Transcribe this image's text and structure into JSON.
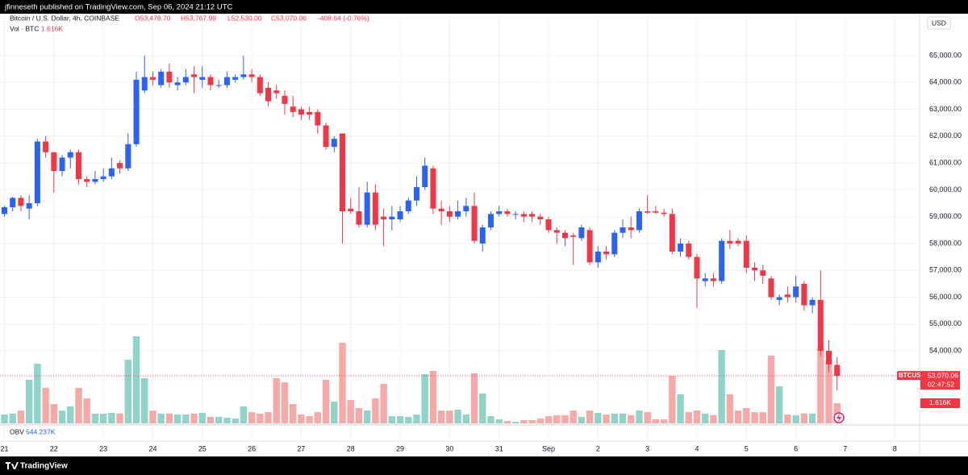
{
  "chart_data": {
    "type": "candlestick",
    "published": "jfinneseth published on TradingView.com, Sep 06, 2024 21:12 UTC",
    "symbol": "Bitcoin / U.S. Dollar, 4h, COINBASE",
    "header_open": "O53,478.70",
    "header_high": "H53,767.99",
    "header_low": "L52,530.00",
    "header_close": "C53,070.06",
    "header_change": "-408.64 (-0.76%)",
    "volume_title": "Vol · BTC",
    "volume_header": "1.616K",
    "currency": "USD",
    "ticker_tag": "BTCUSD",
    "last_price": {
      "value": 53070.06,
      "label": "53,070.06"
    },
    "countdown": "02:47:52",
    "volume_tag": "1.616K",
    "obv_title": "OBV",
    "obv_value": "544.237K",
    "brand": "TradingView",
    "up_color": "#2962ff",
    "down_color": "#f23645",
    "volume_up_color": "#8fd3c9",
    "volume_down_color": "#f7a9a7",
    "grid": true,
    "ylim": [
      51240,
      66560
    ],
    "yticks": [
      {
        "value": 54000,
        "label": "54,000.00"
      },
      {
        "value": 55000,
        "label": "55,000.00"
      },
      {
        "value": 56000,
        "label": "56,000.00"
      },
      {
        "value": 57000,
        "label": "57,000.00"
      },
      {
        "value": 58000,
        "label": "58,000.00"
      },
      {
        "value": 59000,
        "label": "59,000.00"
      },
      {
        "value": 60000,
        "label": "60,000.00"
      },
      {
        "value": 61000,
        "label": "61,000.00"
      },
      {
        "value": 62000,
        "label": "62,000.00"
      },
      {
        "value": 63000,
        "label": "63,000.00"
      },
      {
        "value": 64000,
        "label": "64,000.00"
      },
      {
        "value": 65000,
        "label": "65,000.00"
      }
    ],
    "categories": [
      "21",
      null,
      null,
      null,
      null,
      null,
      "22",
      null,
      null,
      null,
      null,
      null,
      "23",
      null,
      null,
      null,
      null,
      null,
      "24",
      null,
      null,
      null,
      null,
      null,
      "25",
      null,
      null,
      null,
      null,
      null,
      "26",
      null,
      null,
      null,
      null,
      null,
      "27",
      null,
      null,
      null,
      null,
      null,
      "28",
      null,
      null,
      null,
      null,
      null,
      "29",
      null,
      null,
      null,
      null,
      null,
      "30",
      null,
      null,
      null,
      null,
      null,
      "31",
      null,
      null,
      null,
      null,
      null,
      "Sep",
      null,
      null,
      null,
      null,
      null,
      "2",
      null,
      null,
      null,
      null,
      null,
      "3",
      null,
      null,
      null,
      null,
      null,
      "4",
      null,
      null,
      null,
      null,
      null,
      "5",
      null,
      null,
      null,
      null,
      null,
      "6",
      null,
      null,
      null,
      null,
      null
    ],
    "extra_x_labels": [
      "7",
      "8"
    ],
    "open": [
      59100,
      59350,
      59700,
      59300,
      59500,
      61800,
      61400,
      60700,
      61200,
      61400,
      60400,
      60300,
      60400,
      60500,
      61000,
      60800,
      61700,
      63700,
      64200,
      63900,
      64400,
      63900,
      64000,
      64300,
      64100,
      64200,
      63900,
      63900,
      64100,
      64200,
      64300,
      64200,
      63800,
      63700,
      63500,
      63100,
      63000,
      62900,
      62900,
      62400,
      61600,
      62100,
      59300,
      59200,
      58700,
      59900,
      59000,
      58900,
      58900,
      59200,
      59600,
      60100,
      60800,
      59300,
      59200,
      59000,
      59200,
      59400,
      58000,
      58600,
      59100,
      59200,
      59100,
      59100,
      59100,
      59000,
      58900,
      58500,
      58400,
      58300,
      58200,
      58500,
      57300,
      57700,
      57600,
      58400,
      58600,
      58500,
      59200,
      59200,
      59150,
      59100,
      57700,
      58000,
      57500,
      56600,
      56700,
      56600,
      58100,
      58100,
      58100,
      57100,
      57000,
      56700,
      55900,
      56100,
      56000,
      56500,
      55700,
      55900,
      54000,
      53478.7
    ],
    "high": [
      59400,
      59750,
      59800,
      59800,
      61900,
      62000,
      61400,
      61300,
      61500,
      61500,
      60500,
      60700,
      60800,
      61200,
      61100,
      62100,
      64400,
      65000,
      64400,
      64500,
      64700,
      64200,
      64500,
      64600,
      64600,
      64300,
      64100,
      64400,
      64300,
      65000,
      64500,
      64300,
      64000,
      63900,
      63700,
      63500,
      63100,
      63100,
      63000,
      62500,
      62000,
      62100,
      59700,
      60100,
      60300,
      60200,
      59300,
      59400,
      59400,
      59700,
      60500,
      61200,
      60900,
      59600,
      59400,
      59600,
      59700,
      59900,
      58700,
      59200,
      59400,
      59300,
      59200,
      59200,
      59200,
      59100,
      59000,
      58600,
      58500,
      58400,
      58700,
      58600,
      57900,
      57900,
      58500,
      58900,
      59000,
      59300,
      59800,
      59400,
      59300,
      59300,
      58200,
      58100,
      57600,
      56900,
      56900,
      58200,
      58500,
      58200,
      58300,
      57300,
      57200,
      56800,
      56100,
      56400,
      56800,
      56600,
      56000,
      57000,
      54400,
      53767.99
    ],
    "low": [
      59000,
      59200,
      59200,
      58900,
      59400,
      61200,
      59900,
      60500,
      60800,
      60200,
      60100,
      60200,
      60300,
      60400,
      60600,
      60700,
      61600,
      63600,
      63900,
      63800,
      63800,
      63700,
      63900,
      63600,
      63800,
      63700,
      63800,
      63800,
      64000,
      64100,
      64000,
      63500,
      63100,
      63400,
      62800,
      62700,
      62600,
      62600,
      62100,
      61500,
      61400,
      58000,
      59100,
      58600,
      58600,
      58500,
      57900,
      58500,
      58800,
      59100,
      59400,
      60000,
      59100,
      58700,
      58800,
      58900,
      59000,
      58000,
      57700,
      58500,
      59000,
      59000,
      58900,
      58800,
      58800,
      58700,
      58400,
      58000,
      57900,
      57200,
      58100,
      57200,
      57100,
      57400,
      57500,
      58200,
      58200,
      58400,
      59100,
      59100,
      59000,
      57600,
      57500,
      57400,
      55600,
      56400,
      56400,
      56500,
      57800,
      57900,
      56900,
      56600,
      56500,
      55900,
      55700,
      55800,
      55800,
      55500,
      55400,
      53800,
      53200,
      52530
    ],
    "close": [
      59350,
      59700,
      59400,
      59500,
      61800,
      61400,
      60700,
      61200,
      61400,
      60400,
      60300,
      60400,
      60500,
      60800,
      60800,
      61700,
      64100,
      64200,
      64100,
      64400,
      64000,
      64000,
      64200,
      64200,
      64200,
      63900,
      63900,
      64200,
      64200,
      64300,
      64200,
      63600,
      63300,
      63600,
      63200,
      62900,
      62800,
      62800,
      62400,
      61600,
      61900,
      59200,
      59200,
      58700,
      59900,
      58700,
      58900,
      59000,
      59200,
      59600,
      60100,
      60900,
      59300,
      59200,
      59000,
      59200,
      59400,
      58100,
      58600,
      59100,
      59200,
      59100,
      59100,
      59000,
      59000,
      58900,
      58500,
      58400,
      58200,
      58250,
      58600,
      57300,
      57700,
      57600,
      58400,
      58600,
      58500,
      59200,
      59150,
      59150,
      59100,
      57700,
      58000,
      57500,
      56700,
      56700,
      56600,
      58100,
      58000,
      58000,
      57100,
      57000,
      56800,
      56000,
      56000,
      56000,
      56400,
      55700,
      55900,
      54000,
      53500,
      53070.06
    ],
    "volume": [
      710,
      780,
      1030,
      3490,
      4780,
      2840,
      1550,
      1030,
      1360,
      2840,
      2000,
      780,
      780,
      840,
      780,
      5100,
      6980,
      3620,
      1030,
      780,
      780,
      710,
      710,
      780,
      840,
      520,
      520,
      450,
      390,
      1360,
      900,
      780,
      900,
      3620,
      3290,
      1550,
      710,
      580,
      900,
      3490,
      1740,
      6460,
      1870,
      1230,
      1030,
      2000,
      3170,
      580,
      580,
      520,
      710,
      3940,
      4200,
      1030,
      1030,
      1100,
      710,
      4010,
      2390,
      580,
      320,
      190,
      130,
      260,
      260,
      390,
      580,
      650,
      650,
      1030,
      520,
      1030,
      840,
      710,
      780,
      780,
      650,
      1030,
      900,
      320,
      320,
      3810,
      2330,
      900,
      1030,
      780,
      650,
      5880,
      2330,
      1030,
      1230,
      900,
      900,
      5430,
      2970,
      710,
      650,
      780,
      780,
      6070,
      5100,
      1616
    ]
  }
}
